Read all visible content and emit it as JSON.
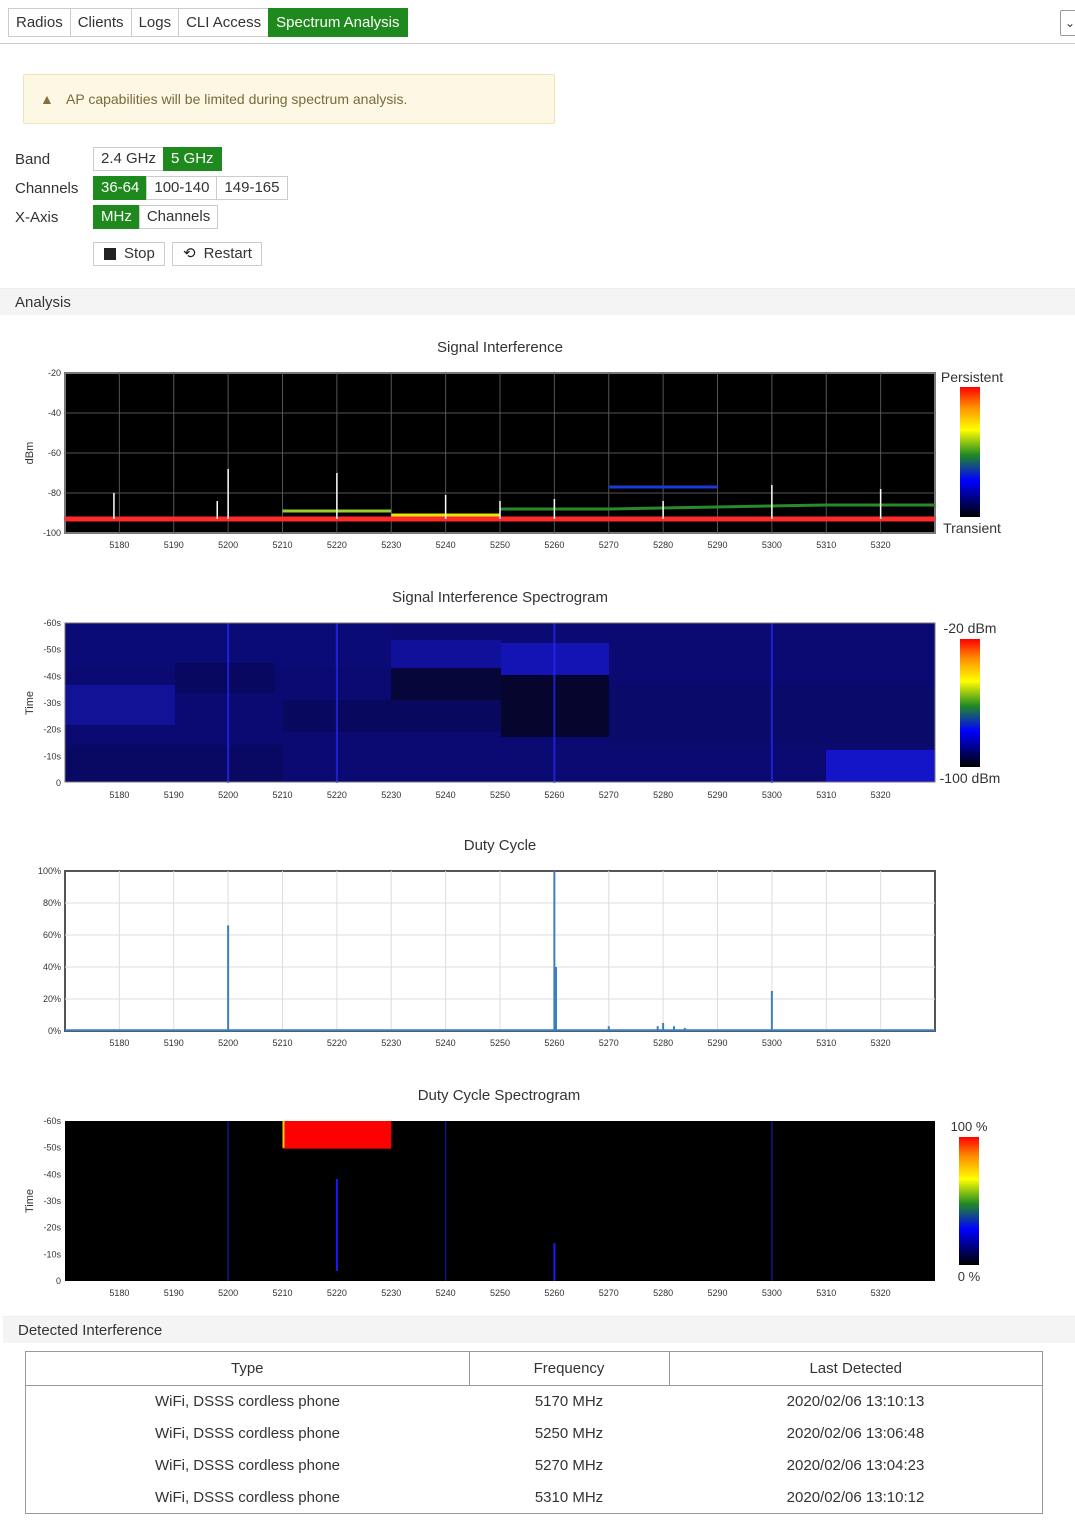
{
  "tabs": [
    {
      "label": "Radios",
      "active": false
    },
    {
      "label": "Clients",
      "active": false
    },
    {
      "label": "Logs",
      "active": false
    },
    {
      "label": "CLI Access",
      "active": false
    },
    {
      "label": "Spectrum Analysis",
      "active": true
    }
  ],
  "collapse_glyph": "⌄",
  "warning": {
    "icon": "warning-triangle-icon",
    "glyph": "▲",
    "text": "AP capabilities will be limited during spectrum analysis."
  },
  "options": {
    "band": {
      "label": "Band",
      "choices": [
        "2.4 GHz",
        "5 GHz"
      ],
      "selected": "5 GHz"
    },
    "channels": {
      "label": "Channels",
      "choices": [
        "36-64",
        "100-140",
        "149-165"
      ],
      "selected": "36-64"
    },
    "xaxis": {
      "label": "X-Axis",
      "choices": [
        "MHz",
        "Channels"
      ],
      "selected": "MHz"
    }
  },
  "buttons": {
    "stop": {
      "label": "Stop",
      "icon": "stop-icon"
    },
    "restart": {
      "label": "Restart",
      "icon": "restart-icon",
      "glyph": "⟲"
    }
  },
  "analysis_header": "Analysis",
  "detected_header": "Detected Interference",
  "colors": {
    "active_green": "#1e8a1e",
    "plot_black": "#000000",
    "spectrogram_blue": "#0a0a6e",
    "duty_line": "#3c7fc0",
    "red_trace": "#ff2a2a"
  },
  "chart_data": [
    {
      "type": "line",
      "title": "Signal Interference",
      "ylabel": "dBm",
      "xlabel": "",
      "x_ticks": [
        5180,
        5190,
        5200,
        5210,
        5220,
        5230,
        5240,
        5250,
        5260,
        5270,
        5280,
        5290,
        5300,
        5310,
        5320
      ],
      "y_ticks": [
        -20,
        -40,
        -60,
        -80,
        -100
      ],
      "xlim": [
        5170,
        5330
      ],
      "ylim": [
        -100,
        -20
      ],
      "grid": true,
      "legend": {
        "top": "Persistent",
        "bottom": "Transient"
      },
      "series": [
        {
          "color": "#ff2a2a",
          "x": [
            5170,
            5330
          ],
          "y": [
            -93,
            -93
          ]
        },
        {
          "color": "#e6e600",
          "x": [
            5230,
            5250
          ],
          "y": [
            -91,
            -91
          ]
        },
        {
          "color": "#9acd32",
          "x": [
            5210,
            5230
          ],
          "y": [
            -89,
            -89
          ]
        },
        {
          "color": "#2a8a2a",
          "x": [
            5250,
            5270,
            5310,
            5330
          ],
          "y": [
            -88,
            -88,
            -86,
            -86
          ]
        },
        {
          "color": "#1a3ad8",
          "x": [
            5270,
            5290
          ],
          "y": [
            -77,
            -77
          ]
        }
      ],
      "spikes": [
        {
          "x": 5179,
          "y": -80
        },
        {
          "x": 5198,
          "y": -84
        },
        {
          "x": 5200,
          "y": -68
        },
        {
          "x": 5220,
          "y": -70
        },
        {
          "x": 5240,
          "y": -81
        },
        {
          "x": 5250,
          "y": -84
        },
        {
          "x": 5260,
          "y": -83
        },
        {
          "x": 5280,
          "y": -84
        },
        {
          "x": 5300,
          "y": -76
        },
        {
          "x": 5320,
          "y": -78
        }
      ]
    },
    {
      "type": "heatmap",
      "title": "Signal Interference Spectrogram",
      "ylabel": "Time",
      "x_ticks": [
        5180,
        5190,
        5200,
        5210,
        5220,
        5230,
        5240,
        5250,
        5260,
        5270,
        5280,
        5290,
        5300,
        5310,
        5320
      ],
      "y_ticks": [
        "-60s",
        "-50s",
        "-40s",
        "-30s",
        "-20s",
        "-10s",
        "0"
      ],
      "xlim": [
        5170,
        5330
      ],
      "legend": {
        "top": "-20 dBm",
        "bottom": "-100 dBm"
      }
    },
    {
      "type": "line",
      "title": "Duty Cycle",
      "ylabel": "",
      "x_ticks": [
        5180,
        5190,
        5200,
        5210,
        5220,
        5230,
        5240,
        5250,
        5260,
        5270,
        5280,
        5290,
        5300,
        5310,
        5320
      ],
      "y_ticks": [
        "100%",
        "80%",
        "60%",
        "40%",
        "20%",
        "0%"
      ],
      "xlim": [
        5170,
        5330
      ],
      "ylim": [
        0,
        100
      ],
      "grid": true,
      "series": [
        {
          "name": "",
          "x": [
            5179,
            5200,
            5220,
            5240,
            5260,
            5260.3,
            5270,
            5279,
            5280,
            5282,
            5284,
            5300
          ],
          "y": [
            1,
            66,
            1,
            1,
            100,
            40,
            3,
            3,
            5,
            3,
            2,
            25
          ]
        }
      ]
    },
    {
      "type": "heatmap",
      "title": "Duty Cycle Spectrogram",
      "ylabel": "Time",
      "x_ticks": [
        5180,
        5190,
        5200,
        5210,
        5220,
        5230,
        5240,
        5250,
        5260,
        5270,
        5280,
        5290,
        5300,
        5310,
        5320
      ],
      "y_ticks": [
        "-60s",
        "-50s",
        "-40s",
        "-30s",
        "-20s",
        "-10s",
        "0"
      ],
      "xlim": [
        5170,
        5330
      ],
      "legend": {
        "top": "100 %",
        "bottom": "0 %"
      },
      "hot_block": {
        "x": [
          5210,
          5230
        ],
        "time": [
          -60,
          -50
        ],
        "value_pct": 100
      }
    }
  ],
  "table": {
    "headers": [
      "Type",
      "Frequency",
      "Last Detected"
    ],
    "rows": [
      [
        "WiFi, DSSS cordless phone",
        "5170 MHz",
        "2020/02/06 13:10:13"
      ],
      [
        "WiFi, DSSS cordless phone",
        "5250 MHz",
        "2020/02/06 13:06:48"
      ],
      [
        "WiFi, DSSS cordless phone",
        "5270 MHz",
        "2020/02/06 13:04:23"
      ],
      [
        "WiFi, DSSS cordless phone",
        "5310 MHz",
        "2020/02/06 13:10:12"
      ]
    ]
  }
}
